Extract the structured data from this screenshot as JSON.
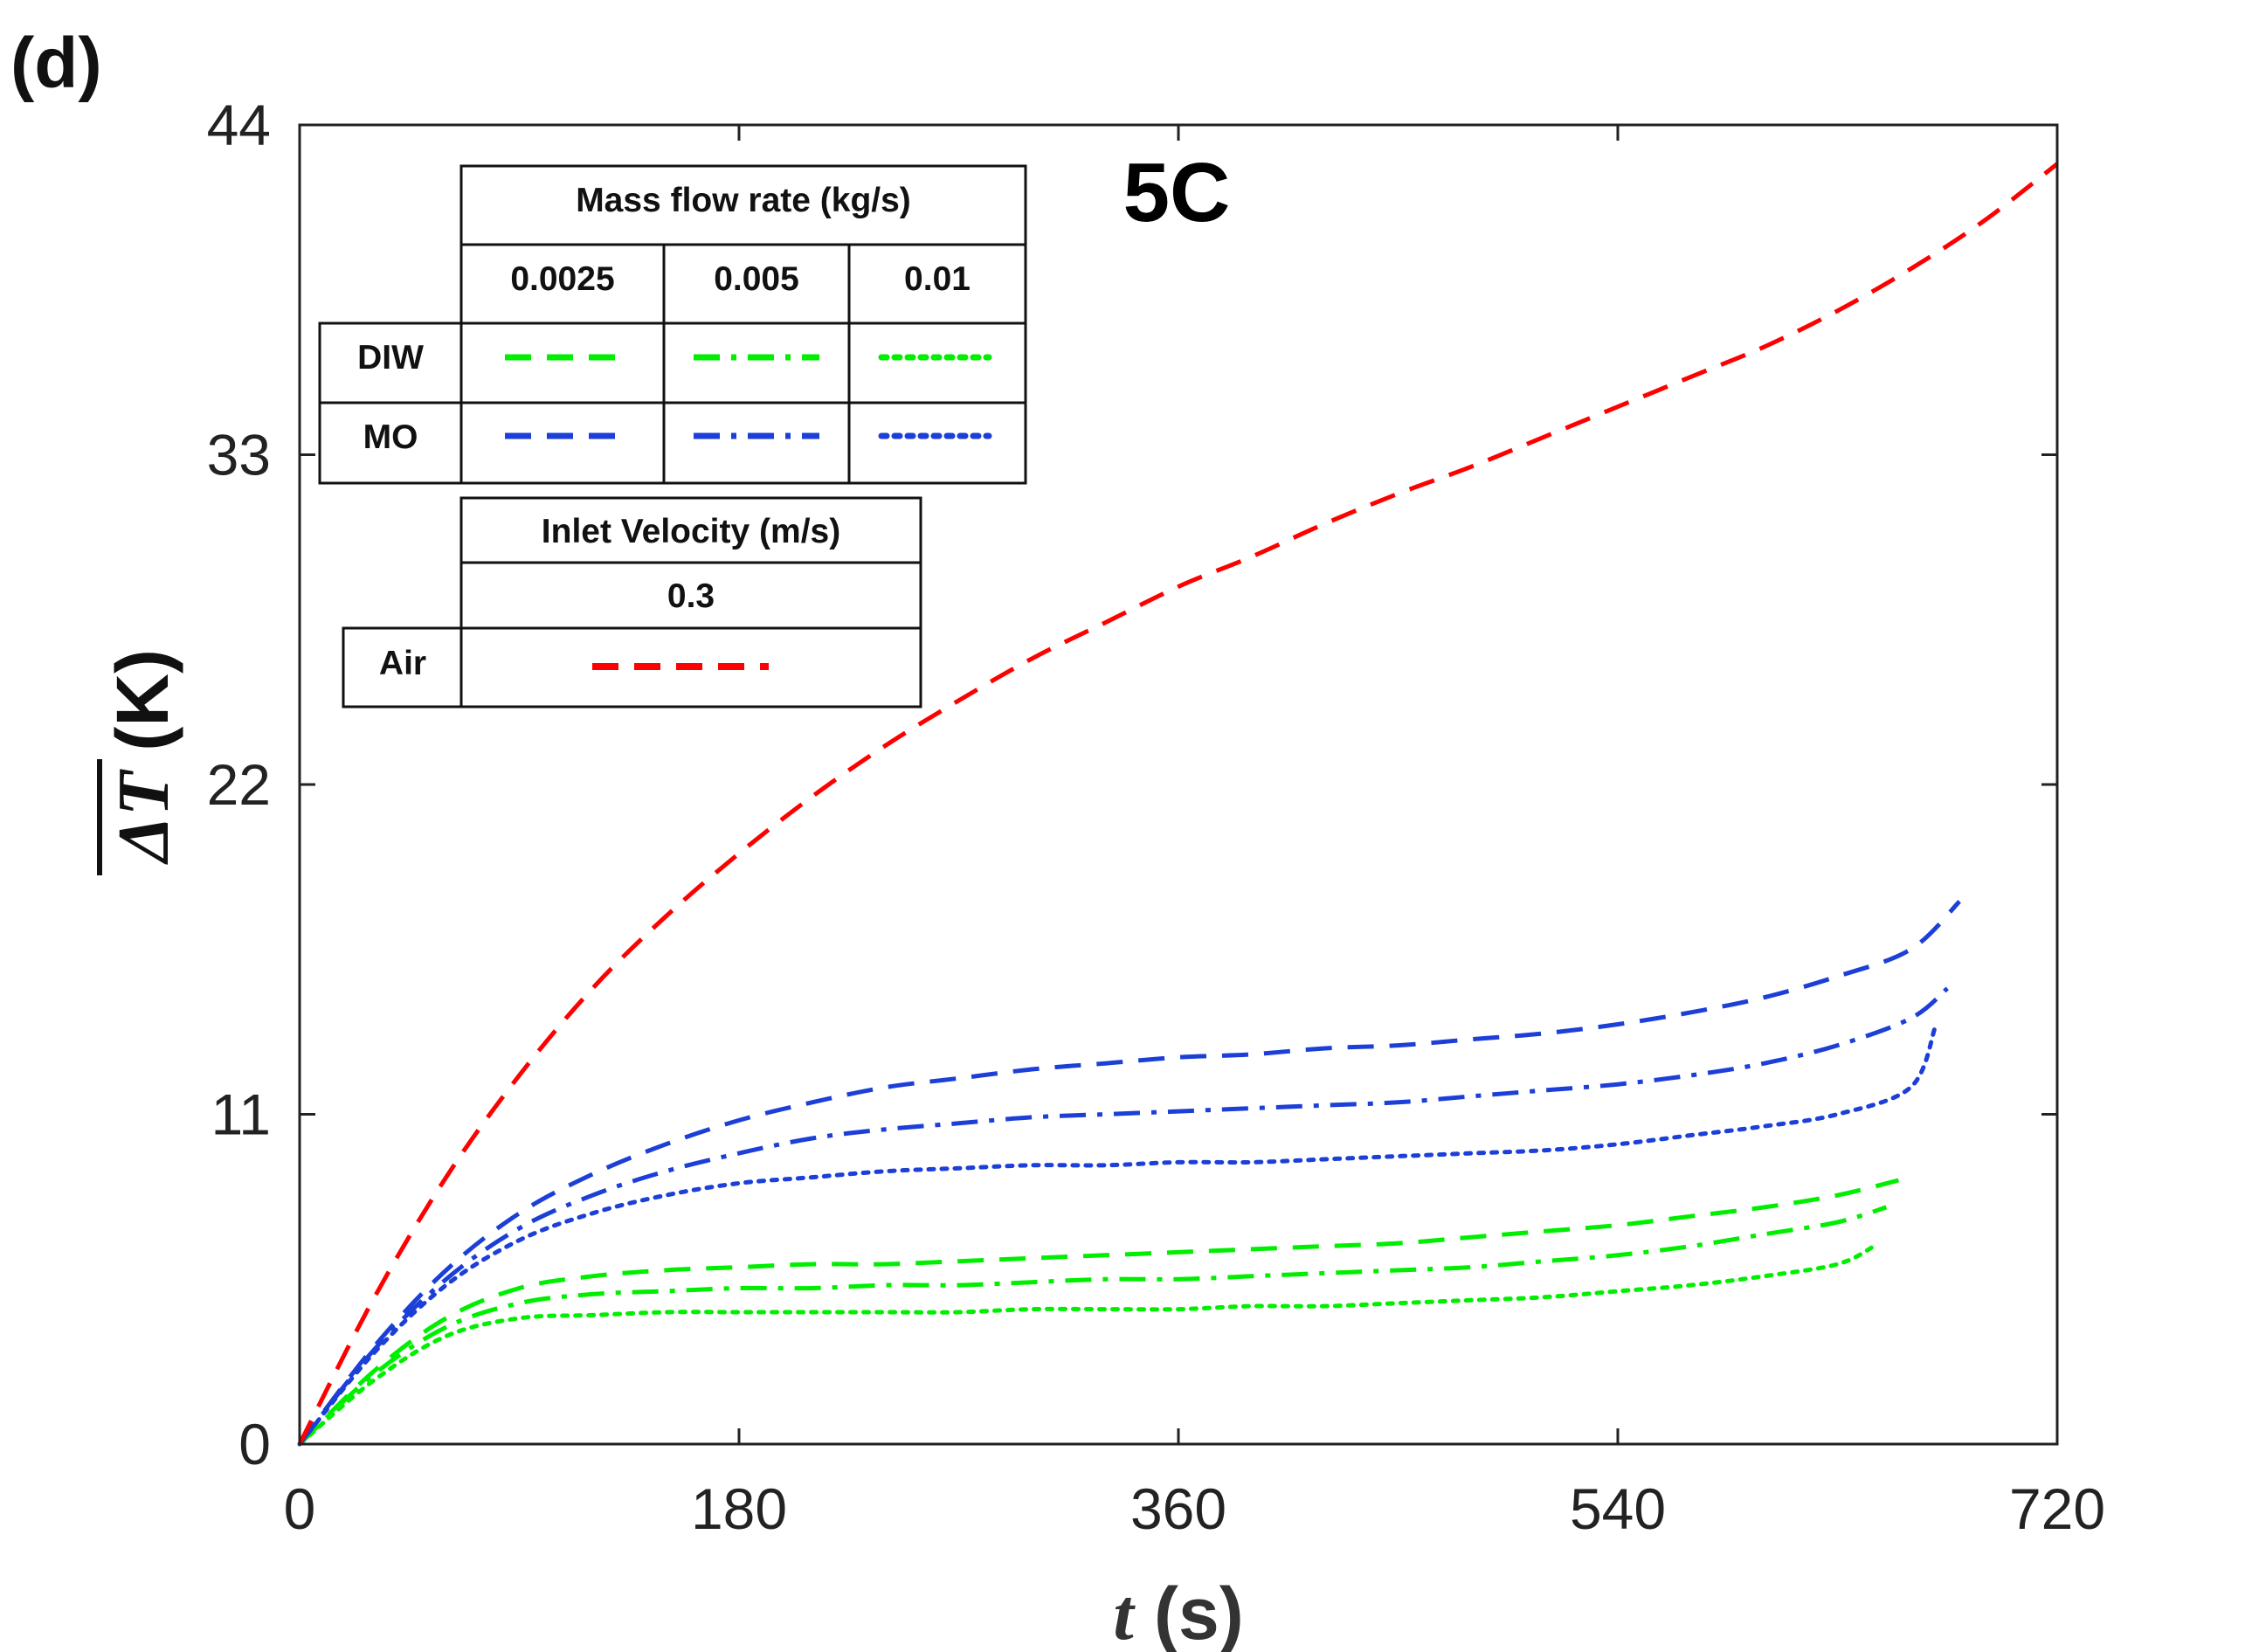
{
  "panel_label": "(d)",
  "chart_data": {
    "type": "line",
    "annotation": "5C",
    "xlabel": {
      "italic": "t",
      "rest": " (s)"
    },
    "ylabel": {
      "symbol": "ΔT",
      "rest": " (K)"
    },
    "xlim": [
      0,
      720
    ],
    "ylim": [
      0,
      44
    ],
    "xticks": [
      0,
      180,
      360,
      540,
      720
    ],
    "yticks": [
      0,
      11,
      22,
      33,
      44
    ],
    "grid": false,
    "legend_placement": "top-left",
    "series": [
      {
        "name": "Air, 0.3 m/s",
        "fluid": "Air",
        "color": "#ff0000",
        "style": "dashed",
        "x": [
          0,
          30,
          60,
          90,
          120,
          150,
          180,
          210,
          240,
          270,
          300,
          330,
          360,
          390,
          420,
          450,
          480,
          510,
          540,
          570,
          600,
          630,
          660,
          690,
          720
        ],
        "y": [
          0,
          4.8,
          8.9,
          12.3,
          15.2,
          17.6,
          19.7,
          21.6,
          23.3,
          24.8,
          26.2,
          27.4,
          28.6,
          29.6,
          30.7,
          31.7,
          32.6,
          33.6,
          34.6,
          35.6,
          36.6,
          37.8,
          39.2,
          40.8,
          42.7
        ]
      },
      {
        "name": "MO, 0.0025 kg/s",
        "fluid": "MO",
        "color": "#1c3fd8",
        "style": "dashed",
        "x": [
          0,
          30,
          60,
          90,
          120,
          150,
          180,
          210,
          240,
          270,
          300,
          330,
          360,
          390,
          420,
          450,
          480,
          510,
          540,
          570,
          600,
          630,
          660,
          680
        ],
        "y": [
          0,
          3.2,
          5.8,
          7.7,
          9.0,
          10.0,
          10.8,
          11.4,
          11.9,
          12.2,
          12.5,
          12.7,
          12.9,
          13.0,
          13.2,
          13.3,
          13.5,
          13.7,
          14.0,
          14.4,
          14.9,
          15.6,
          16.5,
          18.1
        ]
      },
      {
        "name": "MO, 0.005 kg/s",
        "fluid": "MO",
        "color": "#1c3fd8",
        "style": "dashdot",
        "x": [
          0,
          30,
          60,
          90,
          120,
          150,
          180,
          210,
          240,
          270,
          300,
          330,
          360,
          390,
          420,
          450,
          480,
          510,
          540,
          570,
          600,
          630,
          660,
          675
        ],
        "y": [
          0,
          3.1,
          5.5,
          7.2,
          8.3,
          9.1,
          9.7,
          10.2,
          10.5,
          10.7,
          10.9,
          11.0,
          11.1,
          11.2,
          11.3,
          11.4,
          11.6,
          11.8,
          12.0,
          12.3,
          12.7,
          13.3,
          14.2,
          15.2
        ]
      },
      {
        "name": "MO, 0.01 kg/s",
        "fluid": "MO",
        "color": "#1c3fd8",
        "style": "dotted",
        "x": [
          0,
          30,
          60,
          90,
          120,
          150,
          180,
          210,
          240,
          270,
          300,
          330,
          360,
          390,
          420,
          450,
          480,
          510,
          540,
          570,
          600,
          630,
          660,
          670
        ],
        "y": [
          0,
          3.0,
          5.3,
          6.8,
          7.7,
          8.3,
          8.7,
          8.9,
          9.1,
          9.2,
          9.3,
          9.3,
          9.4,
          9.4,
          9.5,
          9.6,
          9.7,
          9.8,
          10.0,
          10.3,
          10.6,
          11.0,
          11.9,
          13.9
        ]
      },
      {
        "name": "DIW, 0.0025 kg/s",
        "fluid": "DIW",
        "color": "#00ee00",
        "style": "dashed",
        "x": [
          0,
          30,
          60,
          90,
          120,
          150,
          180,
          210,
          240,
          270,
          300,
          330,
          360,
          390,
          420,
          450,
          480,
          510,
          540,
          570,
          600,
          630,
          655
        ],
        "y": [
          0,
          2.4,
          4.2,
          5.2,
          5.6,
          5.8,
          5.9,
          6.0,
          6.0,
          6.1,
          6.2,
          6.3,
          6.4,
          6.5,
          6.6,
          6.7,
          6.9,
          7.1,
          7.3,
          7.6,
          7.9,
          8.3,
          8.8
        ]
      },
      {
        "name": "DIW, 0.005 kg/s",
        "fluid": "DIW",
        "color": "#00ee00",
        "style": "dashdot",
        "x": [
          0,
          30,
          60,
          90,
          120,
          150,
          180,
          210,
          240,
          270,
          300,
          330,
          360,
          390,
          420,
          450,
          480,
          510,
          540,
          570,
          600,
          630,
          650
        ],
        "y": [
          0,
          2.3,
          3.9,
          4.7,
          5.0,
          5.1,
          5.2,
          5.2,
          5.3,
          5.3,
          5.4,
          5.5,
          5.5,
          5.6,
          5.7,
          5.8,
          5.9,
          6.1,
          6.3,
          6.6,
          7.0,
          7.4,
          7.9
        ]
      },
      {
        "name": "DIW, 0.01 kg/s",
        "fluid": "DIW",
        "color": "#00ee00",
        "style": "dotted",
        "x": [
          0,
          30,
          60,
          90,
          120,
          150,
          180,
          210,
          240,
          270,
          300,
          330,
          360,
          390,
          420,
          450,
          480,
          510,
          540,
          570,
          600,
          630,
          645
        ],
        "y": [
          0,
          2.1,
          3.6,
          4.2,
          4.3,
          4.4,
          4.4,
          4.4,
          4.4,
          4.4,
          4.5,
          4.5,
          4.5,
          4.6,
          4.6,
          4.7,
          4.8,
          4.9,
          5.1,
          5.3,
          5.6,
          6.0,
          6.6
        ]
      }
    ],
    "legend_mass": {
      "header": "Mass flow rate (kg/s)",
      "columns": [
        "0.0025",
        "0.005",
        "0.01"
      ],
      "rows": [
        {
          "label": "DIW",
          "color": "#00ee00"
        },
        {
          "label": "MO",
          "color": "#1c3fd8"
        }
      ]
    },
    "legend_velocity": {
      "header": "Inlet Velocity (m/s)",
      "value": "0.3",
      "row_label": "Air",
      "color": "#ff0000"
    }
  }
}
